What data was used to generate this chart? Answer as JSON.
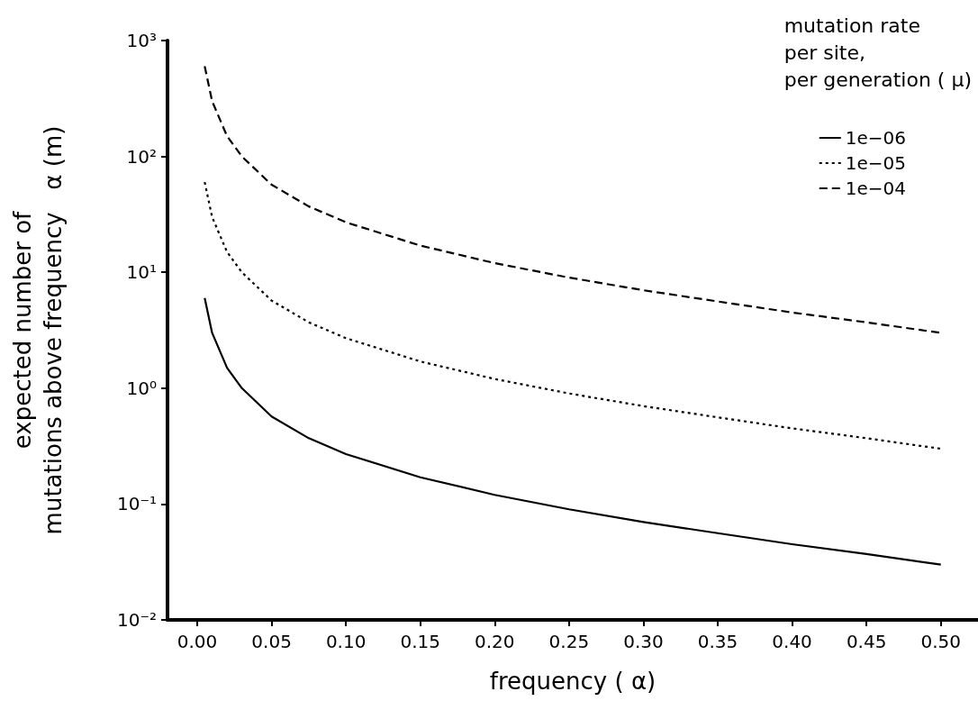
{
  "chart_data": {
    "type": "line",
    "xlabel": "frequency ( α)",
    "ylabel": "expected number of\nmutations above frequency   α (m)",
    "legend_title": "mutation rate\nper site,\nper generation ( μ)",
    "x": [
      0.005,
      0.01,
      0.02,
      0.03,
      0.05,
      0.075,
      0.1,
      0.15,
      0.2,
      0.25,
      0.3,
      0.35,
      0.4,
      0.45,
      0.5
    ],
    "series": [
      {
        "name": "1e−06",
        "color": "#000000",
        "line_style": "solid",
        "values": [
          6,
          3,
          1.5,
          1,
          0.57,
          0.37,
          0.27,
          0.17,
          0.12,
          0.09,
          0.07,
          0.056,
          0.045,
          0.037,
          0.03
        ]
      },
      {
        "name": "1e−05",
        "color": "#000000",
        "line_style": "dotted",
        "values": [
          60,
          30,
          15,
          10,
          5.7,
          3.7,
          2.7,
          1.7,
          1.2,
          0.9,
          0.7,
          0.56,
          0.45,
          0.37,
          0.3
        ]
      },
      {
        "name": "1e−04",
        "color": "#000000",
        "line_style": "dashed",
        "values": [
          600,
          300,
          150,
          100,
          57,
          37,
          27,
          17,
          12,
          9,
          7,
          5.6,
          4.5,
          3.7,
          3
        ]
      }
    ],
    "xlim": [
      -0.02,
      0.525
    ],
    "xticks": [
      {
        "value": 0,
        "label": "0.00"
      },
      {
        "value": 0.05,
        "label": "0.05"
      },
      {
        "value": 0.1,
        "label": "0.10"
      },
      {
        "value": 0.15,
        "label": "0.15"
      },
      {
        "value": 0.2,
        "label": "0.20"
      },
      {
        "value": 0.25,
        "label": "0.25"
      },
      {
        "value": 0.3,
        "label": "0.30"
      },
      {
        "value": 0.35,
        "label": "0.35"
      },
      {
        "value": 0.4,
        "label": "0.40"
      },
      {
        "value": 0.45,
        "label": "0.45"
      },
      {
        "value": 0.5,
        "label": "0.50"
      }
    ],
    "ylim": [
      0.01,
      1000
    ],
    "yticks": [
      {
        "value": 0.01,
        "label": "10⁻²"
      },
      {
        "value": 0.1,
        "label": "10⁻¹"
      },
      {
        "value": 1,
        "label": "10⁰"
      },
      {
        "value": 10,
        "label": "10¹"
      },
      {
        "value": 100,
        "label": "10²"
      },
      {
        "value": 1000,
        "label": "10³"
      }
    ],
    "log": "y",
    "grid": false,
    "legend": "top right",
    "marker": "none"
  }
}
